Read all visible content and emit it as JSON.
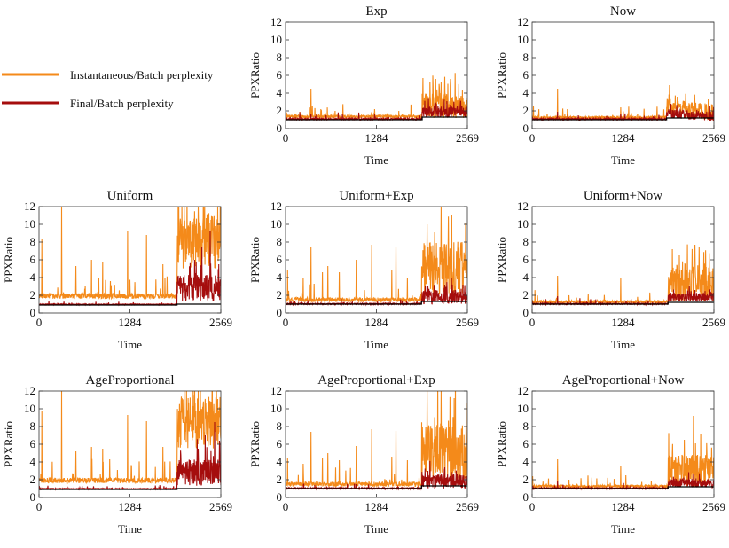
{
  "colors": {
    "instantaneous": "#f48a1a",
    "final": "#a50d0d",
    "baseline": "#000000",
    "frame": "#333333"
  },
  "legend": {
    "placement": "top-left",
    "items": [
      {
        "label": "Instantaneous/Batch perplexity",
        "color": "#f48a1a"
      },
      {
        "label": "Final/Batch perplexity",
        "color": "#a50d0d"
      }
    ]
  },
  "chart_data": [
    {
      "type": "line",
      "title": "Exp",
      "xlabel": "Time",
      "ylabel": "PPXRatio",
      "xlim": [
        0,
        2569
      ],
      "ylim": [
        0,
        12
      ],
      "xticks": [
        0,
        1284,
        2569
      ],
      "yticks": [
        0,
        2,
        4,
        6,
        8,
        10,
        12
      ],
      "series": [
        {
          "name": "Instantaneous/Batch perplexity",
          "base": 1.3,
          "noise": 0.35,
          "regime_start": 1930,
          "regime_level": 2.6,
          "regime_noise": 1.4,
          "spikes": [
            [
              360,
              4.5
            ],
            [
              500,
              2.2
            ],
            [
              700,
              2.0
            ],
            [
              1260,
              2.2
            ],
            [
              1600,
              2.0
            ],
            [
              1940,
              5.7
            ],
            [
              2040,
              5.3
            ],
            [
              2120,
              5.6
            ],
            [
              2200,
              5.2
            ],
            [
              2330,
              5.6
            ]
          ]
        },
        {
          "name": "Final/Batch perplexity",
          "base": 1.05,
          "noise": 0.2,
          "regime_start": 1930,
          "regime_level": 1.9,
          "regime_noise": 0.6,
          "spikes": [
            [
              360,
              1.7
            ],
            [
              1260,
              1.6
            ],
            [
              2130,
              2.8
            ],
            [
              2330,
              2.7
            ]
          ]
        }
      ],
      "baseline": {
        "y": 1.0,
        "step_at": 1930,
        "step_to": 1.3
      }
    },
    {
      "type": "line",
      "title": "Now",
      "xlabel": "Time",
      "ylabel": "PPXRatio",
      "xlim": [
        0,
        2569
      ],
      "ylim": [
        0,
        12
      ],
      "xticks": [
        0,
        1284,
        2569
      ],
      "yticks": [
        0,
        2,
        4,
        6,
        8,
        10,
        12
      ],
      "series": [
        {
          "name": "Instantaneous/Batch perplexity",
          "base": 1.2,
          "noise": 0.3,
          "regime_start": 1900,
          "regime_level": 2.4,
          "regime_noise": 1.0,
          "decay": true,
          "spikes": [
            [
              360,
              4.5
            ],
            [
              500,
              2.2
            ],
            [
              1250,
              2.4
            ],
            [
              1940,
              4.9
            ],
            [
              2050,
              3.6
            ],
            [
              2300,
              2.8
            ]
          ]
        },
        {
          "name": "Final/Batch perplexity",
          "base": 1.05,
          "noise": 0.18,
          "regime_start": 1900,
          "regime_level": 1.7,
          "regime_noise": 0.5,
          "decay": true,
          "spikes": [
            [
              360,
              1.9
            ],
            [
              1250,
              1.7
            ],
            [
              1960,
              2.8
            ]
          ]
        }
      ],
      "baseline": {
        "y": 1.0,
        "step_at": 1900,
        "step_to": 1.2
      }
    },
    {
      "type": "line",
      "title": "Uniform",
      "xlabel": "Time",
      "ylabel": "PPXRatio",
      "xlim": [
        0,
        2569
      ],
      "ylim": [
        0,
        12
      ],
      "xticks": [
        0,
        1284,
        2569
      ],
      "yticks": [
        0,
        2,
        4,
        6,
        8,
        10,
        12
      ],
      "series": [
        {
          "name": "Instantaneous/Batch perplexity",
          "base": 1.8,
          "noise": 0.6,
          "regime_start": 1950,
          "regime_level": 8.0,
          "regime_noise": 3.0,
          "spikes": [
            [
              40,
              8.3
            ],
            [
              320,
              12.0
            ],
            [
              520,
              5.3
            ],
            [
              740,
              6.0
            ],
            [
              900,
              5.8
            ],
            [
              1010,
              3.6
            ],
            [
              1250,
              9.3
            ],
            [
              1520,
              8.8
            ],
            [
              1750,
              5.5
            ],
            [
              2050,
              12.0
            ],
            [
              2250,
              12.0
            ],
            [
              2430,
              10.5
            ]
          ]
        },
        {
          "name": "Final/Batch perplexity",
          "base": 0.95,
          "noise": 0.1,
          "regime_start": 1950,
          "regime_level": 2.8,
          "regime_noise": 1.5,
          "spikes": [
            [
              2200,
              6.0
            ],
            [
              2300,
              7.5
            ],
            [
              2420,
              9.2
            ],
            [
              2540,
              5.5
            ]
          ]
        }
      ],
      "baseline": {
        "y": 0.9,
        "step_at": 1950,
        "step_to": 1.0
      }
    },
    {
      "type": "line",
      "title": "Uniform+Exp",
      "xlabel": "Time",
      "ylabel": "PPXRatio",
      "xlim": [
        0,
        2569
      ],
      "ylim": [
        0,
        12
      ],
      "xticks": [
        0,
        1284,
        2569
      ],
      "yticks": [
        0,
        2,
        4,
        6,
        8,
        10,
        12
      ],
      "series": [
        {
          "name": "Instantaneous/Batch perplexity",
          "base": 1.4,
          "noise": 0.5,
          "regime_start": 1920,
          "regime_level": 5.0,
          "regime_noise": 3.0,
          "spikes": [
            [
              30,
              4.9
            ],
            [
              250,
              4.0
            ],
            [
              360,
              7.4
            ],
            [
              520,
              4.6
            ],
            [
              600,
              5.3
            ],
            [
              760,
              4.6
            ],
            [
              1000,
              6.0
            ],
            [
              1220,
              7.7
            ],
            [
              1500,
              4.8
            ],
            [
              1560,
              7.5
            ],
            [
              1720,
              4.0
            ],
            [
              2000,
              10.0
            ],
            [
              2200,
              12.0
            ],
            [
              2350,
              11.0
            ]
          ]
        },
        {
          "name": "Final/Batch perplexity",
          "base": 1.0,
          "noise": 0.15,
          "regime_start": 1920,
          "regime_level": 1.8,
          "regime_noise": 0.8,
          "spikes": [
            [
              2010,
              3.0
            ],
            [
              2250,
              3.2
            ]
          ]
        }
      ],
      "baseline": {
        "y": 1.0,
        "step_at": 1920,
        "step_to": 1.3
      }
    },
    {
      "type": "line",
      "title": "Uniform+Now",
      "xlabel": "Time",
      "ylabel": "PPXRatio",
      "xlim": [
        0,
        2569
      ],
      "ylim": [
        0,
        12
      ],
      "xticks": [
        0,
        1284,
        2569
      ],
      "yticks": [
        0,
        2,
        4,
        6,
        8,
        10,
        12
      ],
      "series": [
        {
          "name": "Instantaneous/Batch perplexity",
          "base": 1.2,
          "noise": 0.3,
          "regime_start": 1920,
          "regime_level": 3.2,
          "regime_noise": 2.0,
          "spikes": [
            [
              360,
              4.2
            ],
            [
              520,
              2.0
            ],
            [
              1250,
              4.0
            ],
            [
              1980,
              7.2
            ],
            [
              2080,
              6.5
            ],
            [
              2170,
              5.5
            ],
            [
              2300,
              7.7
            ],
            [
              2460,
              5.2
            ]
          ]
        },
        {
          "name": "Final/Batch perplexity",
          "base": 1.0,
          "noise": 0.15,
          "regime_start": 1920,
          "regime_level": 1.8,
          "regime_noise": 0.5,
          "spikes": [
            [
              360,
              1.9
            ],
            [
              2300,
              2.6
            ]
          ]
        }
      ],
      "baseline": {
        "y": 1.0,
        "step_at": 1920,
        "step_to": 1.2
      }
    },
    {
      "type": "line",
      "title": "AgeProportional",
      "xlabel": "Time",
      "ylabel": "PPXRatio",
      "xlim": [
        0,
        2569
      ],
      "ylim": [
        0,
        12
      ],
      "xticks": [
        0,
        1284,
        2569
      ],
      "yticks": [
        0,
        2,
        4,
        6,
        8,
        10,
        12
      ],
      "series": [
        {
          "name": "Instantaneous/Batch perplexity",
          "base": 1.8,
          "noise": 0.6,
          "regime_start": 1950,
          "regime_level": 8.5,
          "regime_noise": 3.0,
          "spikes": [
            [
              40,
              9.8
            ],
            [
              320,
              12.0
            ],
            [
              520,
              5.2
            ],
            [
              740,
              5.7
            ],
            [
              900,
              5.5
            ],
            [
              1000,
              4.3
            ],
            [
              1250,
              9.3
            ],
            [
              1520,
              8.6
            ],
            [
              1750,
              5.7
            ],
            [
              2050,
              12.0
            ],
            [
              2250,
              12.0
            ],
            [
              2430,
              10.8
            ]
          ]
        },
        {
          "name": "Final/Batch perplexity",
          "base": 0.95,
          "noise": 0.1,
          "regime_start": 1950,
          "regime_level": 2.8,
          "regime_noise": 1.5,
          "spikes": [
            [
              2250,
              5.5
            ],
            [
              2350,
              7.0
            ],
            [
              2480,
              8.5
            ],
            [
              2550,
              6.4
            ]
          ]
        }
      ],
      "baseline": {
        "y": 0.9,
        "step_at": 1950,
        "step_to": 1.0
      }
    },
    {
      "type": "line",
      "title": "AgeProportional+Exp",
      "xlabel": "Time",
      "ylabel": "PPXRatio",
      "xlim": [
        0,
        2569
      ],
      "ylim": [
        0,
        12
      ],
      "xticks": [
        0,
        1284,
        2569
      ],
      "yticks": [
        0,
        2,
        4,
        6,
        8,
        10,
        12
      ],
      "series": [
        {
          "name": "Instantaneous/Batch perplexity",
          "base": 1.4,
          "noise": 0.5,
          "regime_start": 1920,
          "regime_level": 5.0,
          "regime_noise": 3.2,
          "spikes": [
            [
              30,
              4.5
            ],
            [
              250,
              3.8
            ],
            [
              360,
              7.4
            ],
            [
              520,
              4.4
            ],
            [
              600,
              5.0
            ],
            [
              760,
              4.2
            ],
            [
              1000,
              5.8
            ],
            [
              1220,
              7.7
            ],
            [
              1500,
              4.6
            ],
            [
              1560,
              7.5
            ],
            [
              1720,
              4.2
            ],
            [
              2000,
              12.0
            ],
            [
              2200,
              12.0
            ],
            [
              2380,
              11.2
            ]
          ]
        },
        {
          "name": "Final/Batch perplexity",
          "base": 1.0,
          "noise": 0.15,
          "regime_start": 1920,
          "regime_level": 1.8,
          "regime_noise": 0.8,
          "spikes": [
            [
              2010,
              3.0
            ],
            [
              2250,
              3.4
            ]
          ]
        }
      ],
      "baseline": {
        "y": 1.0,
        "step_at": 1920,
        "step_to": 1.3
      }
    },
    {
      "type": "line",
      "title": "AgeProportional+Now",
      "xlabel": "Time",
      "ylabel": "PPXRatio",
      "xlim": [
        0,
        2569
      ],
      "ylim": [
        0,
        12
      ],
      "xticks": [
        0,
        1284,
        2569
      ],
      "yticks": [
        0,
        2,
        4,
        6,
        8,
        10,
        12
      ],
      "series": [
        {
          "name": "Instantaneous/Batch perplexity",
          "base": 1.2,
          "noise": 0.3,
          "regime_start": 1920,
          "regime_level": 3.0,
          "regime_noise": 1.8,
          "spikes": [
            [
              360,
              4.3
            ],
            [
              520,
              2.0
            ],
            [
              1250,
              3.6
            ],
            [
              1980,
              5.0
            ],
            [
              2150,
              6.5
            ],
            [
              2280,
              9.2
            ],
            [
              2380,
              7.2
            ],
            [
              2470,
              5.0
            ]
          ]
        },
        {
          "name": "Final/Batch perplexity",
          "base": 1.0,
          "noise": 0.15,
          "regime_start": 1920,
          "regime_level": 1.6,
          "regime_noise": 0.5,
          "spikes": [
            [
              360,
              1.9
            ],
            [
              2280,
              2.6
            ]
          ]
        }
      ],
      "baseline": {
        "y": 1.0,
        "step_at": 1920,
        "step_to": 1.2
      }
    }
  ]
}
